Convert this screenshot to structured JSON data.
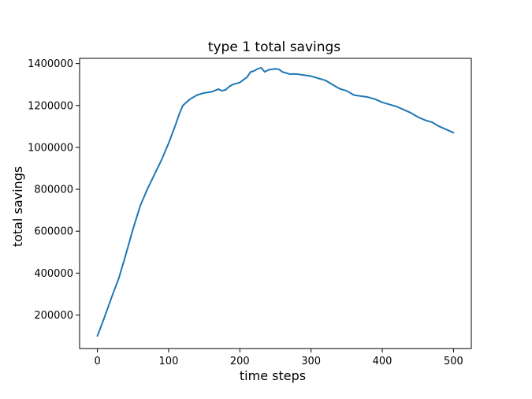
{
  "chart_data": {
    "type": "line",
    "title": "type 1 total savings",
    "xlabel": "time steps",
    "ylabel": "total savings",
    "xlim": [
      -25,
      525
    ],
    "ylim": [
      40000,
      1425000
    ],
    "xticks": [
      0,
      100,
      200,
      300,
      400,
      500
    ],
    "yticks": [
      200000,
      400000,
      600000,
      800000,
      1000000,
      1200000,
      1400000
    ],
    "grid": false,
    "series": [
      {
        "color": "#1f77b4",
        "x": [
          0,
          10,
          20,
          30,
          40,
          50,
          60,
          70,
          80,
          90,
          100,
          110,
          115,
          120,
          125,
          130,
          140,
          150,
          160,
          170,
          175,
          180,
          185,
          190,
          200,
          210,
          215,
          220,
          225,
          230,
          235,
          240,
          250,
          255,
          260,
          270,
          280,
          290,
          300,
          310,
          320,
          330,
          340,
          350,
          360,
          370,
          380,
          390,
          400,
          410,
          420,
          430,
          440,
          450,
          460,
          470,
          480,
          490,
          500
        ],
        "y": [
          100000,
          190000,
          285000,
          375000,
          490000,
          610000,
          720000,
          800000,
          870000,
          940000,
          1020000,
          1110000,
          1160000,
          1200000,
          1215000,
          1230000,
          1250000,
          1260000,
          1265000,
          1278000,
          1270000,
          1275000,
          1290000,
          1300000,
          1310000,
          1335000,
          1360000,
          1365000,
          1375000,
          1380000,
          1360000,
          1370000,
          1375000,
          1372000,
          1360000,
          1350000,
          1350000,
          1345000,
          1340000,
          1330000,
          1320000,
          1300000,
          1280000,
          1270000,
          1250000,
          1245000,
          1240000,
          1230000,
          1215000,
          1205000,
          1195000,
          1180000,
          1165000,
          1145000,
          1130000,
          1120000,
          1100000,
          1085000,
          1070000
        ]
      }
    ]
  }
}
